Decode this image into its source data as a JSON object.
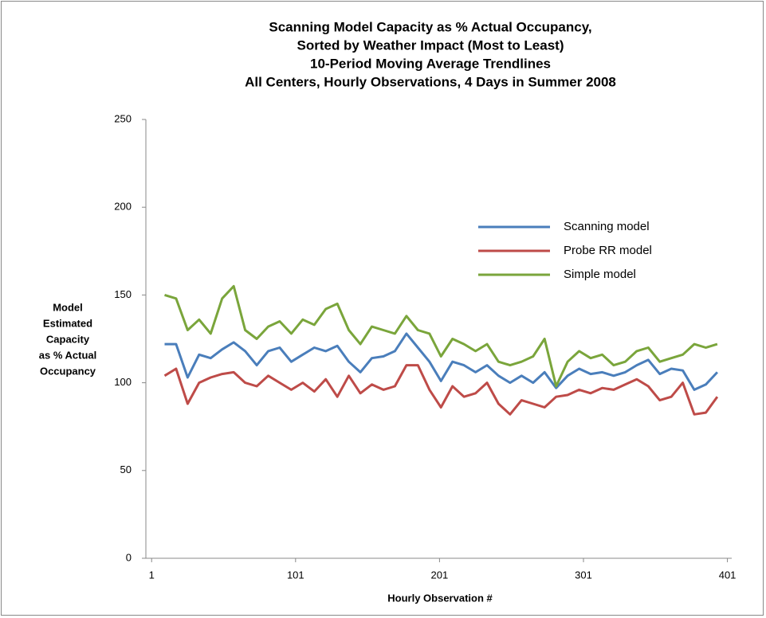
{
  "chart_data": {
    "type": "line",
    "title": [
      "Scanning Model Capacity as % Actual Occupancy,",
      "Sorted by Weather Impact (Most to Least)",
      "10-Period Moving Average Trendlines",
      "All Centers, Hourly Observations, 4 Days in Summer 2008"
    ],
    "xlabel": "Hourly Observation #",
    "ylabel": [
      "Model",
      "Estimated",
      "Capacity",
      "as % Actual",
      "Occupancy"
    ],
    "x": [
      10,
      18,
      26,
      34,
      42,
      50,
      58,
      66,
      74,
      82,
      90,
      98,
      106,
      114,
      122,
      130,
      138,
      146,
      154,
      162,
      170,
      178,
      186,
      194,
      202,
      210,
      218,
      226,
      234,
      242,
      250,
      258,
      266,
      274,
      282,
      290,
      298,
      306,
      314,
      322,
      330,
      338,
      346,
      354,
      362,
      370,
      378,
      386,
      394
    ],
    "series": [
      {
        "name": "Scanning model",
        "color": "#4a7ebb",
        "values": [
          122,
          122,
          103,
          116,
          114,
          119,
          123,
          118,
          110,
          118,
          120,
          112,
          116,
          120,
          118,
          121,
          112,
          106,
          114,
          115,
          118,
          128,
          120,
          112,
          101,
          112,
          110,
          106,
          110,
          104,
          100,
          104,
          100,
          106,
          97,
          104,
          108,
          105,
          106,
          104,
          106,
          110,
          113,
          105,
          108,
          107,
          96,
          99,
          106
        ]
      },
      {
        "name": "Probe RR model",
        "color": "#be4b48",
        "values": [
          104,
          108,
          88,
          100,
          103,
          105,
          106,
          100,
          98,
          104,
          100,
          96,
          100,
          95,
          102,
          92,
          104,
          94,
          99,
          96,
          98,
          110,
          110,
          96,
          86,
          98,
          92,
          94,
          100,
          88,
          82,
          90,
          88,
          86,
          92,
          93,
          96,
          94,
          97,
          96,
          99,
          102,
          98,
          90,
          92,
          100,
          82,
          83,
          92
        ]
      },
      {
        "name": "Simple model",
        "color": "#7aa53b",
        "values": [
          150,
          148,
          130,
          136,
          128,
          148,
          155,
          130,
          125,
          132,
          135,
          128,
          136,
          133,
          142,
          145,
          130,
          122,
          132,
          130,
          128,
          138,
          130,
          128,
          115,
          125,
          122,
          118,
          122,
          112,
          110,
          112,
          115,
          125,
          98,
          112,
          118,
          114,
          116,
          110,
          112,
          118,
          120,
          112,
          114,
          116,
          122,
          120,
          122
        ]
      }
    ],
    "xlim": [
      -3,
      404
    ],
    "xticks": [
      1,
      101,
      201,
      301,
      401
    ],
    "ylim": [
      0,
      250
    ],
    "yticks": [
      0,
      50,
      100,
      150,
      200,
      250
    ],
    "grid": false,
    "legend": "upper right"
  }
}
